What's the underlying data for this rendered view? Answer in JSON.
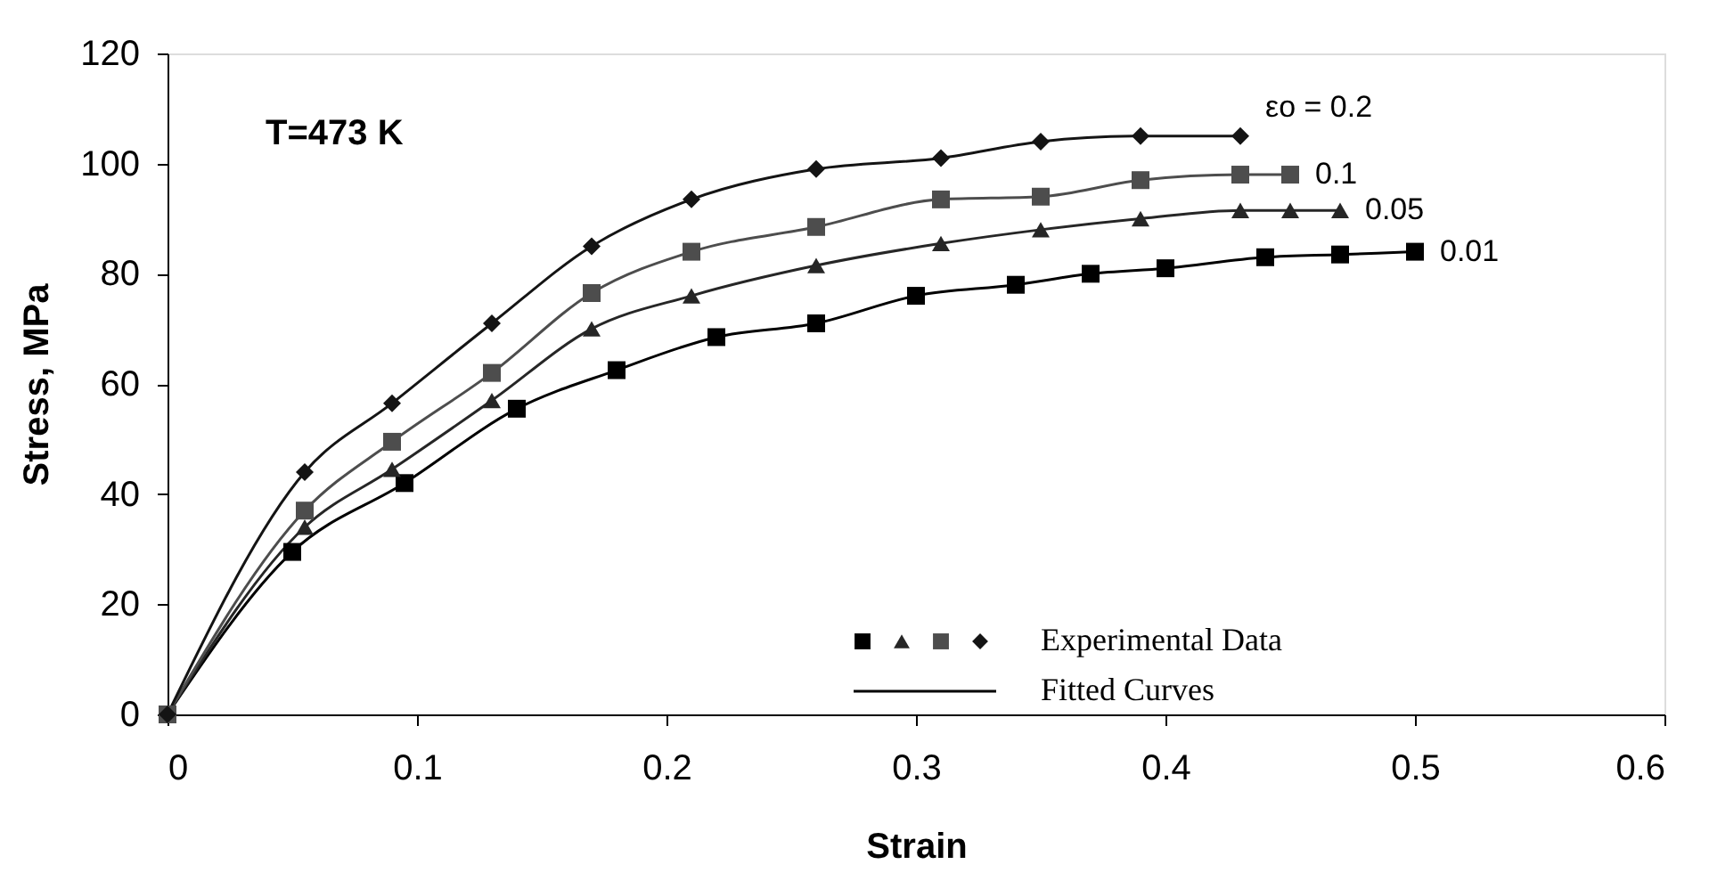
{
  "chart_data": {
    "type": "line",
    "xlabel": "Strain",
    "ylabel": "Stress, MPa",
    "xlim": [
      0,
      0.6
    ],
    "xticks": [
      0,
      0.1,
      0.2,
      0.3,
      0.4,
      0.5,
      0.6
    ],
    "ylim": [
      0,
      120
    ],
    "yticks": [
      0,
      20,
      40,
      60,
      80,
      100,
      120
    ],
    "grid": false,
    "line_style": "solid",
    "annotations": [
      "T=473 K",
      "Experimental Data",
      "Fitted Curves"
    ],
    "series": [
      {
        "name": "0.01",
        "color": "#000000",
        "marker": "square",
        "x": [
          0,
          0.05,
          0.095,
          0.14,
          0.18,
          0.22,
          0.26,
          0.3,
          0.34,
          0.37,
          0.4,
          0.44,
          0.47,
          0.5
        ],
        "values": [
          0,
          29.5,
          42,
          55.5,
          62.5,
          68.5,
          71,
          76,
          78,
          80,
          81,
          83,
          83.5,
          84
        ]
      },
      {
        "name": "0.05",
        "color": "#262626",
        "marker": "triangle",
        "x": [
          0,
          0.055,
          0.09,
          0.13,
          0.17,
          0.21,
          0.26,
          0.31,
          0.35,
          0.39,
          0.43,
          0.45,
          0.47
        ],
        "values": [
          0,
          34,
          44.5,
          57,
          70,
          76,
          81.5,
          85.5,
          88,
          90,
          91.5,
          91.5,
          91.5
        ]
      },
      {
        "name": "0.1",
        "color": "#4d4d4d",
        "marker": "square",
        "x": [
          0,
          0.055,
          0.09,
          0.13,
          0.17,
          0.21,
          0.26,
          0.31,
          0.35,
          0.39,
          0.43,
          0.45
        ],
        "values": [
          0,
          37,
          49.5,
          62,
          76.5,
          84,
          88.5,
          93.5,
          94,
          97,
          98,
          98
        ]
      },
      {
        "name": "εo = 0.2",
        "color": "#141414",
        "marker": "diamond",
        "x": [
          0,
          0.055,
          0.09,
          0.13,
          0.17,
          0.21,
          0.26,
          0.31,
          0.35,
          0.39,
          0.43
        ],
        "values": [
          0,
          44,
          56.5,
          71,
          85,
          93.5,
          99,
          101,
          104,
          105,
          105
        ]
      }
    ]
  }
}
